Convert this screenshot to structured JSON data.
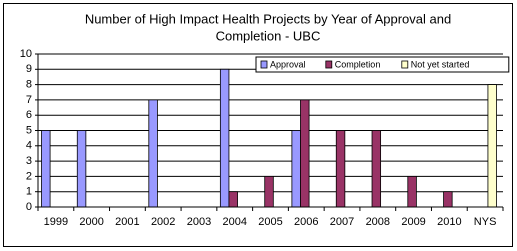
{
  "chart_data": {
    "type": "bar",
    "title": [
      "Number of High Impact Health Projects by Year of Approval and",
      "Completion - UBC"
    ],
    "categories": [
      "1999",
      "2000",
      "2001",
      "2002",
      "2003",
      "2004",
      "2005",
      "2006",
      "2007",
      "2008",
      "2009",
      "2010",
      "NYS"
    ],
    "series": [
      {
        "name": "Approval",
        "color": "#9999ff",
        "values": [
          5,
          5,
          0,
          7,
          0,
          9,
          0,
          5,
          0,
          0,
          0,
          0,
          0
        ]
      },
      {
        "name": "Completion",
        "color": "#993366",
        "values": [
          0,
          0,
          0,
          0,
          0,
          1,
          2,
          7,
          5,
          5,
          2,
          1,
          0
        ]
      },
      {
        "name": "Not yet started",
        "color": "#ffffcc",
        "values": [
          0,
          0,
          0,
          0,
          0,
          0,
          0,
          0,
          0,
          0,
          0,
          0,
          8
        ]
      }
    ],
    "ylim": [
      0,
      10
    ],
    "yticks": [
      0,
      1,
      2,
      3,
      4,
      5,
      6,
      7,
      8,
      9,
      10
    ],
    "grid": true,
    "legend_position": "upper-center"
  }
}
